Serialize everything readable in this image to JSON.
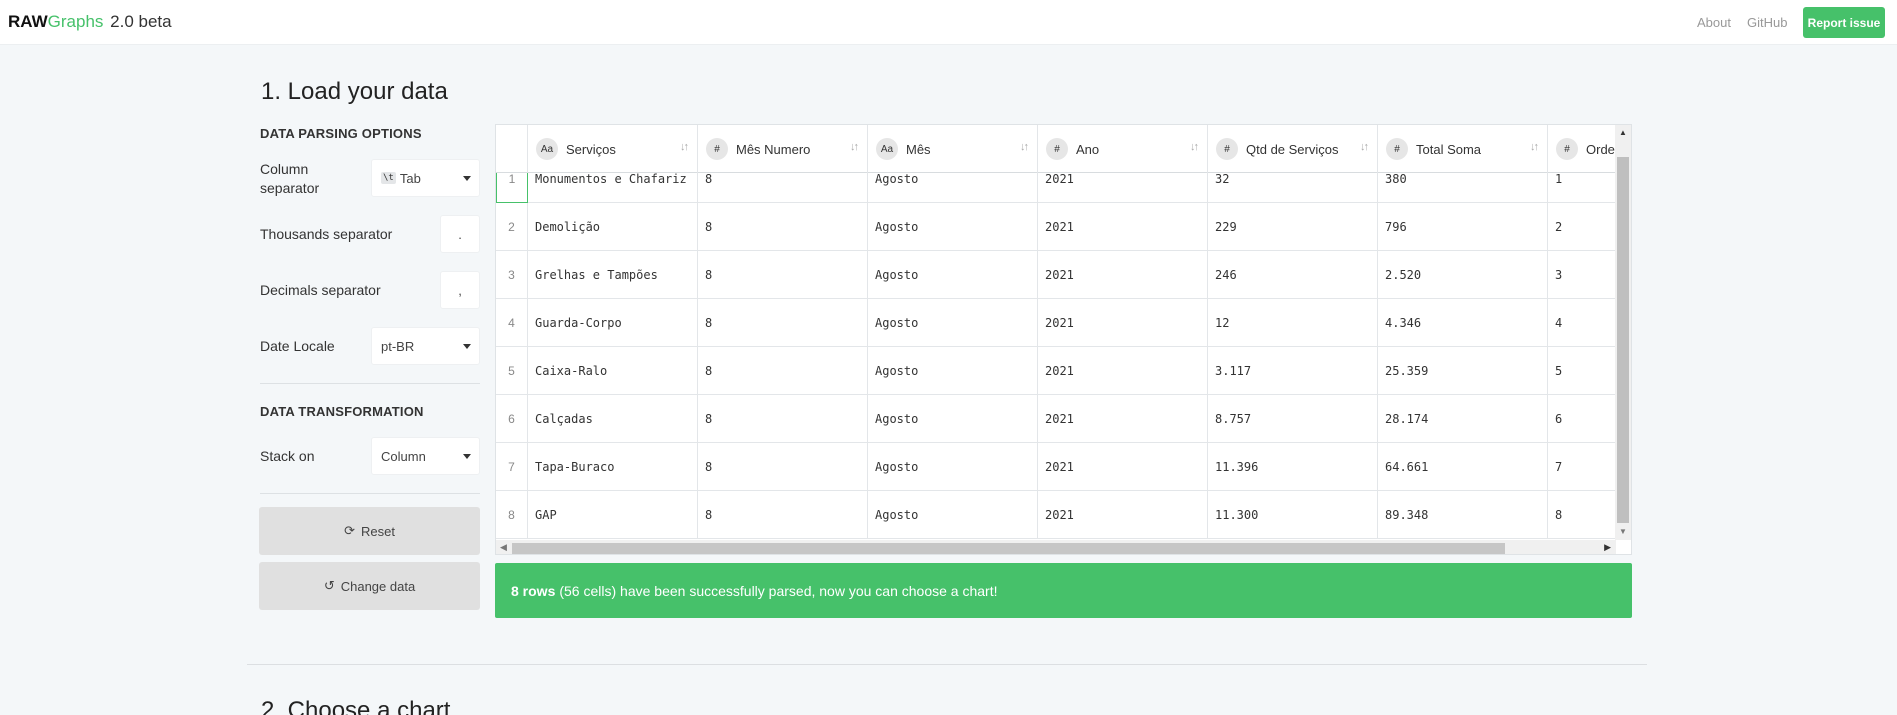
{
  "brand": {
    "raw": "RAW",
    "graphs": "Graphs",
    "version": "2.0 beta"
  },
  "nav": {
    "about": "About",
    "github": "GitHub",
    "report": "Report issue"
  },
  "section1_title": "1. Load your data",
  "section2_title": "2. Choose a chart",
  "parsing": {
    "title": "DATA PARSING OPTIONS",
    "column_separator_label": "Column separator",
    "column_separator_glyph": "\\t",
    "column_separator_value": "Tab",
    "thousands_label": "Thousands separator",
    "thousands_value": ".",
    "decimals_label": "Decimals separator",
    "decimals_value": ",",
    "locale_label": "Date Locale",
    "locale_value": "pt-BR"
  },
  "transform": {
    "title": "DATA TRANSFORMATION",
    "stack_label": "Stack on",
    "stack_value": "Column"
  },
  "buttons": {
    "reset": "Reset",
    "change": "Change data"
  },
  "table": {
    "columns": [
      {
        "type": "Aa",
        "name": "Serviços"
      },
      {
        "type": "#",
        "name": "Mês Numero"
      },
      {
        "type": "Aa",
        "name": "Mês"
      },
      {
        "type": "#",
        "name": "Ano"
      },
      {
        "type": "#",
        "name": "Qtd de Serviços"
      },
      {
        "type": "#",
        "name": "Total Soma"
      },
      {
        "type": "#",
        "name": "Orde"
      }
    ],
    "rows": [
      {
        "index": "1",
        "cells": [
          "Monumentos e Chafariz",
          "8",
          "Agosto",
          "2021",
          "32",
          "380",
          "1"
        ]
      },
      {
        "index": "2",
        "cells": [
          "Demolição",
          "8",
          "Agosto",
          "2021",
          "229",
          "796",
          "2"
        ]
      },
      {
        "index": "3",
        "cells": [
          "Grelhas e Tampões",
          "8",
          "Agosto",
          "2021",
          "246",
          "2.520",
          "3"
        ]
      },
      {
        "index": "4",
        "cells": [
          "Guarda-Corpo",
          "8",
          "Agosto",
          "2021",
          "12",
          "4.346",
          "4"
        ]
      },
      {
        "index": "5",
        "cells": [
          "Caixa-Ralo",
          "8",
          "Agosto",
          "2021",
          "3.117",
          "25.359",
          "5"
        ]
      },
      {
        "index": "6",
        "cells": [
          "Calçadas",
          "8",
          "Agosto",
          "2021",
          "8.757",
          "28.174",
          "6"
        ]
      },
      {
        "index": "7",
        "cells": [
          "Tapa-Buraco",
          "8",
          "Agosto",
          "2021",
          "11.396",
          "64.661",
          "7"
        ]
      },
      {
        "index": "8",
        "cells": [
          "GAP",
          "8",
          "Agosto",
          "2021",
          "11.300",
          "89.348",
          "8"
        ]
      }
    ]
  },
  "success": {
    "bold": "8 rows",
    "rest": "(56 cells) have been successfully parsed, now you can choose a chart!"
  },
  "colors": {
    "accent": "#46c16a"
  }
}
